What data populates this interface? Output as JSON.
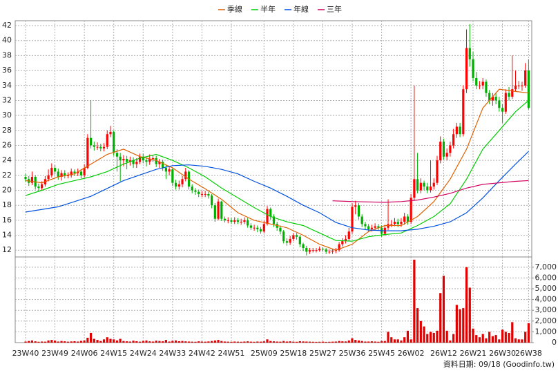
{
  "chart_data": [
    {
      "type": "candlestick",
      "legend": "top",
      "grid": true,
      "up_color": "#ff0000",
      "down_color": "#00b000",
      "ylim": [
        11.1,
        42.65
      ],
      "yticks": [
        12,
        14,
        16,
        18,
        20,
        22,
        24,
        26,
        28,
        30,
        32,
        34,
        36,
        38,
        40,
        42
      ],
      "open": [
        21.8,
        21.5,
        21,
        21.8,
        20.5,
        20.3,
        20.8,
        21.5,
        22,
        23,
        22.5,
        21.8,
        22.3,
        22,
        22,
        22.5,
        22.3,
        22.5,
        22,
        23,
        27,
        26,
        25.8,
        25.8,
        25.6,
        25.8,
        27.5,
        27.8,
        25,
        24.5,
        24,
        24.2,
        23.8,
        24,
        23.5,
        23.8,
        24.5,
        24,
        23.8,
        24.2,
        24.3,
        23.5,
        23.8,
        23,
        22.5,
        22.8,
        21,
        20.5,
        20.8,
        21.5,
        22.5,
        20.5,
        20,
        19.8,
        19.5,
        19.5,
        19.5,
        19.3,
        18,
        16.2,
        18.5,
        16.2,
        16,
        16,
        15.8,
        16,
        15.8,
        15.8,
        16,
        15.3,
        15,
        15,
        14.8,
        14.5,
        15.5,
        17.5,
        16.5,
        15.5,
        15,
        14.5,
        13.2,
        13,
        13.5,
        14,
        13.8,
        12.8,
        12.3,
        11.8,
        12,
        12,
        12,
        12.2,
        12.1,
        11.8,
        11.8,
        11.9,
        12,
        12.8,
        13.2,
        13.5,
        14.5,
        17.8,
        18,
        16.5,
        15.5,
        15.2,
        14.8,
        15,
        15.2,
        15,
        14.2,
        15,
        15.5,
        15.5,
        15.8,
        15.5,
        15.8,
        16.5,
        15.8,
        19,
        21.5,
        20,
        21,
        20.5,
        20,
        20.5,
        21,
        24,
        26.5,
        24.5,
        25,
        26,
        27.5,
        28.5,
        27.5,
        33.5,
        39,
        37.5,
        35,
        34,
        34,
        34.5,
        33,
        32,
        32.5,
        32,
        31,
        30.5,
        33,
        32.5,
        33.5,
        34,
        34,
        34,
        36
      ],
      "high": [
        22.2,
        21.9,
        22.5,
        22,
        20.9,
        21.2,
        21.9,
        22.8,
        23.6,
        23.4,
        22.9,
        22.7,
        22.7,
        22.4,
        22.9,
        22.8,
        22.9,
        22.8,
        23.5,
        27.5,
        32,
        26.5,
        26.4,
        26.2,
        26.3,
        28,
        28.6,
        28,
        25.5,
        25,
        24.7,
        24.6,
        24.5,
        24.4,
        24.3,
        24.9,
        24.9,
        24.4,
        24.8,
        24.7,
        24.6,
        24.2,
        24.1,
        23.4,
        23.2,
        23,
        21.4,
        21.3,
        21.9,
        23,
        22.7,
        20.8,
        20.3,
        20.1,
        19.9,
        19.9,
        19.8,
        19.5,
        18.3,
        18.9,
        18.6,
        16.5,
        16.4,
        16.3,
        16.4,
        16.3,
        16.2,
        16.4,
        16.3,
        15.6,
        15.4,
        15.3,
        15.1,
        15.9,
        17.9,
        17.7,
        16.8,
        15.8,
        15.3,
        14.7,
        13.6,
        13.9,
        14.3,
        14.3,
        14,
        13,
        12.6,
        12.3,
        12.3,
        12.3,
        12.5,
        12.4,
        12.3,
        12.1,
        12.2,
        12.3,
        13.1,
        13.6,
        14,
        15,
        18.3,
        18.6,
        18.3,
        16.8,
        15.8,
        15.5,
        15.4,
        15.6,
        15.5,
        15.3,
        15.4,
        18.8,
        16,
        16.3,
        16.2,
        16.3,
        17,
        16.8,
        19.5,
        34,
        25,
        21.6,
        21.3,
        21,
        24,
        21.6,
        24.6,
        27.2,
        26.9,
        25.6,
        26.5,
        28.2,
        29,
        29,
        34,
        41.5,
        42.2,
        38.5,
        35.8,
        34.6,
        35,
        34.8,
        33.4,
        33,
        33,
        32.5,
        31.5,
        33.5,
        33.8,
        38,
        36,
        34.6,
        34.5,
        37,
        37.5
      ],
      "low": [
        21.1,
        20.6,
        20.7,
        20.1,
        19.9,
        20,
        20.5,
        21.2,
        21.7,
        22.1,
        21.4,
        21.3,
        21.6,
        21.6,
        21.7,
        21.9,
        21.9,
        21.6,
        21.7,
        22.8,
        25.6,
        25.3,
        25.4,
        25.2,
        25.2,
        25.5,
        27.1,
        24.6,
        22.5,
        21.2,
        23.2,
        22.8,
        23.3,
        23,
        23,
        23.5,
        23.6,
        23.2,
        23.4,
        23.8,
        23.1,
        23,
        22.6,
        21.5,
        22,
        20.6,
        20.1,
        20.1,
        20.4,
        21.2,
        20.1,
        19.6,
        19.4,
        19.1,
        19.1,
        19.1,
        18.9,
        17.6,
        15.8,
        16,
        15.9,
        15.7,
        15.6,
        15.5,
        15.5,
        15.5,
        15.4,
        15.5,
        15,
        14.7,
        14.6,
        14.4,
        14.2,
        14.3,
        15.3,
        16.1,
        15.1,
        14.6,
        14.1,
        12.9,
        12.6,
        12.7,
        13.2,
        13.4,
        12.4,
        11.9,
        11.3,
        11.5,
        11.7,
        11.7,
        11.8,
        11.8,
        11.5,
        11.5,
        11.5,
        11.6,
        11.8,
        12.5,
        12.9,
        13.2,
        14.2,
        16.8,
        16.1,
        15.1,
        14.8,
        14.4,
        14.5,
        14.7,
        14.6,
        13.8,
        13.9,
        14.7,
        15.1,
        15.2,
        15.1,
        15.1,
        15.4,
        15.4,
        15.5,
        18.7,
        19.6,
        19.6,
        20,
        19.6,
        19.7,
        20.1,
        20.7,
        23.6,
        24.1,
        24,
        24.5,
        25.6,
        27,
        27.1,
        27.2,
        33,
        36.5,
        34.6,
        33.5,
        33.5,
        33.5,
        32.5,
        31.5,
        31.3,
        31.5,
        30.5,
        29,
        30.2,
        32,
        32.2,
        33.2,
        33.5,
        33.3,
        33.7,
        30.8
      ],
      "close": [
        21.5,
        21,
        21.8,
        20.5,
        20.3,
        20.8,
        21.5,
        22,
        23,
        22.5,
        21.8,
        22.3,
        22,
        22,
        22.5,
        22.3,
        22.5,
        22,
        23,
        27,
        26,
        25.8,
        25.8,
        25.6,
        25.8,
        27.5,
        27.8,
        25,
        24.5,
        24,
        24.2,
        23.8,
        24,
        23.5,
        23.8,
        24.5,
        24,
        23.8,
        24.2,
        24.3,
        23.5,
        23.8,
        23,
        22.5,
        22.8,
        21,
        20.5,
        20.8,
        21.5,
        22.5,
        20.5,
        20,
        19.8,
        19.5,
        19.5,
        19.5,
        19.3,
        18,
        16.2,
        18.5,
        16.2,
        16,
        16,
        15.8,
        16,
        15.8,
        15.8,
        16,
        15.3,
        15,
        15,
        14.8,
        14.5,
        15.5,
        17.5,
        16.5,
        15.5,
        15,
        14.5,
        13.2,
        13,
        13.5,
        14,
        13.8,
        12.8,
        12.3,
        11.8,
        12,
        12,
        12,
        12.2,
        12.1,
        11.8,
        11.8,
        11.9,
        12,
        12.8,
        13.2,
        13.5,
        14.5,
        17.8,
        18,
        16.5,
        15.5,
        15.2,
        14.8,
        15,
        15.2,
        15,
        14.2,
        15,
        15.5,
        15.5,
        15.8,
        15.5,
        15.8,
        16.5,
        15.8,
        19,
        21.5,
        20,
        21,
        20.5,
        20,
        20.5,
        21,
        24,
        26.5,
        24.5,
        25,
        26,
        27.5,
        28.5,
        27.5,
        33.5,
        39,
        37.5,
        35,
        34,
        34,
        34.5,
        33,
        32,
        32.5,
        32,
        31,
        30.5,
        33,
        32.5,
        33.5,
        34,
        34,
        34,
        36,
        31
      ],
      "series": [
        {
          "name": "季線",
          "color": "#e06000",
          "x": [
            0,
            5,
            10,
            15,
            20,
            25,
            30,
            35,
            40,
            45,
            50,
            55,
            60,
            65,
            70,
            75,
            80,
            85,
            90,
            95,
            100,
            105,
            110,
            115,
            120,
            125,
            130,
            135,
            140,
            145,
            150,
            154
          ],
          "values": [
            21.3,
            21,
            21.8,
            22.2,
            23.5,
            24.8,
            25.5,
            24.5,
            24,
            23,
            21.5,
            20.2,
            18.8,
            17,
            16,
            15.5,
            15,
            14,
            12.8,
            12,
            12.8,
            14.5,
            15.3,
            15.3,
            16.5,
            18.5,
            21.5,
            25.5,
            31,
            33.5,
            33.2,
            33
          ]
        },
        {
          "name": "半年",
          "color": "#00cc00",
          "x": [
            0,
            5,
            10,
            15,
            20,
            25,
            30,
            35,
            40,
            45,
            50,
            55,
            60,
            65,
            70,
            75,
            80,
            85,
            90,
            95,
            100,
            105,
            110,
            115,
            120,
            125,
            130,
            135,
            140,
            145,
            150,
            154
          ],
          "values": [
            19.3,
            20,
            20.8,
            21.3,
            21.8,
            22.5,
            23.5,
            24.3,
            24.8,
            24,
            23,
            21.8,
            20.3,
            19,
            17.7,
            16.5,
            15.8,
            15.3,
            14.3,
            13.3,
            13.2,
            13.8,
            14.1,
            14.3,
            15.3,
            16.5,
            18.2,
            21.5,
            25.5,
            28,
            30.5,
            32
          ]
        },
        {
          "name": "年線",
          "color": "#0050e0",
          "x": [
            0,
            10,
            20,
            30,
            40,
            45,
            50,
            55,
            60,
            65,
            70,
            75,
            80,
            85,
            90,
            95,
            100,
            105,
            110,
            115,
            120,
            125,
            130,
            135,
            140,
            145,
            150,
            154
          ],
          "values": [
            17.1,
            17.8,
            19.2,
            21.3,
            22.8,
            23.3,
            23.4,
            23.2,
            22.8,
            22.2,
            21.2,
            20.3,
            19.2,
            18,
            17,
            15.7,
            15,
            14.7,
            14.6,
            14.6,
            14.8,
            15.2,
            15.8,
            17,
            19,
            21.3,
            23.5,
            25.2
          ]
        },
        {
          "name": "三年",
          "color": "#d00060",
          "x": [
            94,
            100,
            110,
            115,
            120,
            125,
            130,
            135,
            140,
            145,
            150,
            154
          ],
          "values": [
            18.6,
            18.5,
            18.4,
            18.5,
            18.7,
            19.1,
            19.6,
            20.3,
            20.8,
            21,
            21.2,
            21.3
          ]
        }
      ]
    },
    {
      "type": "bar",
      "grid": true,
      "color": "#e00000",
      "ylim": [
        0,
        7950
      ],
      "yticks": [
        0,
        {
          "value": 1000,
          "label": "1,000"
        },
        {
          "value": 2000,
          "label": "2,000"
        },
        {
          "value": 3000,
          "label": "3,000"
        },
        {
          "value": 4000,
          "label": "4,000"
        },
        {
          "value": 5000,
          "label": "5,000"
        },
        {
          "value": 6000,
          "label": "6,000"
        },
        {
          "value": 7000,
          "label": "7,000"
        }
      ],
      "categories": [
        "23W40",
        null,
        null,
        null,
        null,
        null,
        null,
        null,
        null,
        "23W49",
        null,
        null,
        null,
        null,
        null,
        null,
        null,
        null,
        "24W06",
        null,
        null,
        null,
        null,
        null,
        null,
        null,
        null,
        "24W15",
        null,
        null,
        null,
        null,
        null,
        null,
        null,
        null,
        "24W24",
        null,
        null,
        null,
        null,
        null,
        null,
        null,
        null,
        "24W33",
        null,
        null,
        null,
        null,
        null,
        null,
        null,
        null,
        "24W42",
        null,
        null,
        null,
        null,
        null,
        null,
        null,
        null,
        "24W51",
        null,
        null,
        null,
        null,
        null,
        null,
        null,
        null,
        null,
        "25W09",
        null,
        null,
        null,
        null,
        null,
        null,
        null,
        null,
        "25W18",
        null,
        null,
        null,
        null,
        null,
        null,
        null,
        null,
        "25W27",
        null,
        null,
        null,
        null,
        null,
        null,
        null,
        null,
        "25W36",
        null,
        null,
        null,
        null,
        null,
        null,
        null,
        null,
        "25W45",
        null,
        null,
        null,
        null,
        null,
        null,
        null,
        null,
        "26W02",
        null,
        null,
        null,
        null,
        null,
        null,
        null,
        null,
        null,
        "26W12",
        null,
        null,
        null,
        null,
        null,
        null,
        null,
        null,
        "26W21",
        null,
        null,
        null,
        null,
        null,
        null,
        null,
        null,
        "26W30",
        null,
        null,
        null,
        null,
        null,
        null,
        null,
        "26W38"
      ],
      "values": [
        100,
        150,
        200,
        120,
        80,
        100,
        90,
        200,
        250,
        180,
        100,
        150,
        120,
        90,
        110,
        130,
        100,
        160,
        200,
        450,
        900,
        350,
        250,
        150,
        300,
        500,
        350,
        300,
        200,
        350,
        150,
        120,
        100,
        180,
        130,
        90,
        150,
        200,
        120,
        100,
        180,
        150,
        120,
        250,
        100,
        160,
        200,
        130,
        150,
        120,
        100,
        90,
        80,
        120,
        100,
        90,
        110,
        150,
        200,
        250,
        150,
        100,
        90,
        80,
        100,
        90,
        80,
        100,
        120,
        90,
        80,
        100,
        90,
        120,
        300,
        150,
        120,
        100,
        90,
        150,
        100,
        120,
        90,
        80,
        130,
        110,
        100,
        90,
        80,
        70,
        80,
        90,
        70,
        80,
        90,
        100,
        150,
        120,
        110,
        200,
        400,
        250,
        200,
        150,
        100,
        100,
        120,
        100,
        80,
        150,
        150,
        1000,
        500,
        300,
        300,
        200,
        500,
        1100,
        300,
        7700,
        3200,
        2000,
        1500,
        800,
        1000,
        900,
        1100,
        4600,
        6200,
        1100,
        200,
        800,
        3500,
        3100,
        3200,
        7000,
        5100,
        1300,
        700,
        500,
        800,
        400,
        1000,
        600,
        700,
        300,
        1200,
        1000,
        900,
        1900,
        400,
        300,
        300,
        1000,
        1800
      ],
      "footnote": "資料日期: 09/18  (Goodinfo.tw)"
    }
  ]
}
